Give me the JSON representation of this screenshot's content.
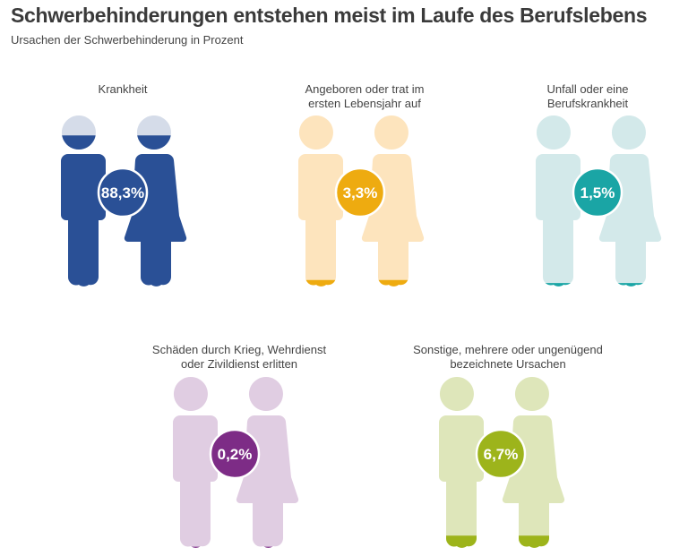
{
  "header": {
    "title": "Schwerbehinderungen entstehen meist im Laufe des Berufslebens",
    "subtitle": "Ursachen der Schwerbehinderung in Prozent"
  },
  "chart_data": {
    "type": "pictogram",
    "unit": "%",
    "categories": [
      {
        "label": "Krankheit",
        "value": 88.3,
        "value_label": "88,3%",
        "color": "#2a5096",
        "light": "#d5dce9"
      },
      {
        "label": "Angeboren oder trat im ersten Lebensjahr auf",
        "value": 3.3,
        "value_label": "3,3%",
        "color": "#eeab10",
        "light": "#fde4bd"
      },
      {
        "label": "Unfall oder eine Berufskrankheit",
        "value": 1.5,
        "value_label": "1,5%",
        "color": "#1aa5a5",
        "light": "#d3e9ea"
      },
      {
        "label": "Schäden durch Krieg, Wehrdienst oder Zivildienst erlitten",
        "value": 0.2,
        "value_label": "0,2%",
        "color": "#7d2c86",
        "light": "#e0cde2"
      },
      {
        "label": "Sonstige, mehrere oder ungenügend bezeichnete Ursachen",
        "value": 6.7,
        "value_label": "6,7%",
        "color": "#9db41b",
        "light": "#dee6ba"
      }
    ]
  }
}
